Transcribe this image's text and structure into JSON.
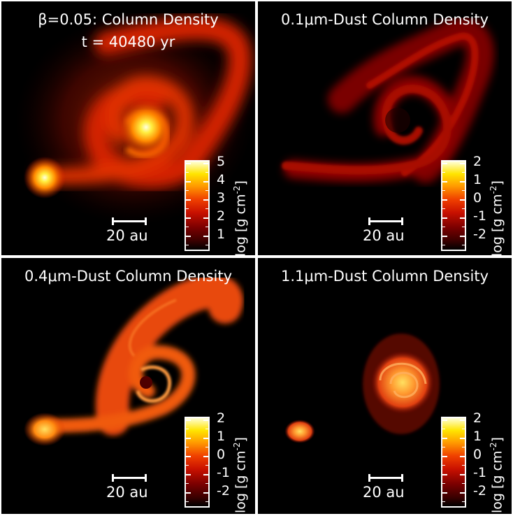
{
  "panels": [
    {
      "title": "β=0.05: Column Density",
      "subtitle": "t = 40480 yr",
      "colorbar_ticks": [
        "5",
        "4",
        "3",
        "2",
        "1"
      ],
      "colorbar_label": "log [g cm",
      "colorbar_label_exp": "-2",
      "colorbar_label_end": "]",
      "scale_label": "20 au"
    },
    {
      "title": "0.1μm-Dust Column Density",
      "colorbar_ticks": [
        "2",
        "1",
        "0",
        "-1",
        "-2"
      ],
      "colorbar_label": "log [g cm",
      "colorbar_label_exp": "-2",
      "colorbar_label_end": "]",
      "scale_label": "20 au"
    },
    {
      "title": "0.4μm-Dust Column Density",
      "colorbar_ticks": [
        "2",
        "1",
        "0",
        "-1",
        "-2"
      ],
      "colorbar_label": "log [g cm",
      "colorbar_label_exp": "-2",
      "colorbar_label_end": "]",
      "scale_label": "20 au"
    },
    {
      "title": "1.1μm-Dust Column Density",
      "colorbar_ticks": [
        "2",
        "1",
        "0",
        "-1",
        "-2"
      ],
      "colorbar_label": "log [g cm",
      "colorbar_label_exp": "-2",
      "colorbar_label_end": "]",
      "scale_label": "20 au"
    }
  ],
  "colors": {
    "background": "#000000",
    "frame": "#ffffff",
    "hot": "#ffffd8",
    "warm": "#ff9a00",
    "mid": "#c81000",
    "cool": "#5a0000"
  }
}
